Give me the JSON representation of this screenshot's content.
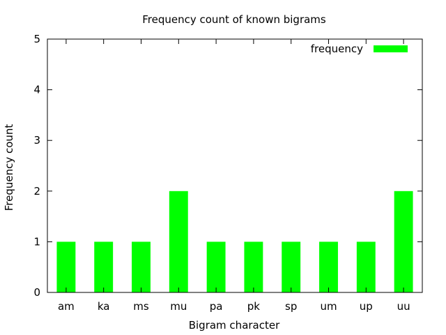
{
  "chart_data": {
    "type": "bar",
    "title": "Frequency count of known bigrams",
    "xlabel": "Bigram character",
    "ylabel": "Frequency count",
    "categories": [
      "am",
      "ka",
      "ms",
      "mu",
      "pa",
      "pk",
      "sp",
      "um",
      "up",
      "uu"
    ],
    "series": [
      {
        "name": "frequency",
        "values": [
          1,
          1,
          1,
          2,
          1,
          1,
          1,
          1,
          1,
          2
        ],
        "color": "#00ff00"
      }
    ],
    "ylim": [
      0,
      5
    ],
    "yticks": [
      0,
      1,
      2,
      3,
      4,
      5
    ],
    "grid": false,
    "legend": "top-right"
  }
}
